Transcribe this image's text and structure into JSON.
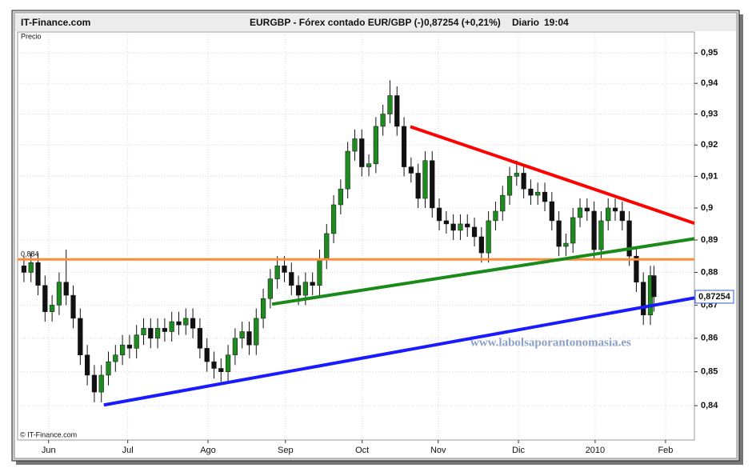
{
  "chart_data": {
    "type": "candlestick",
    "brand": "IT-Finance.com",
    "title": "EURGBP - Fórex contado EUR/GBP (-)",
    "quote": "0,87254 (+0,21%)",
    "period": "Diario",
    "time": "19:04",
    "y_label": "Precio",
    "copyright": "© IT-Finance.com",
    "watermark": "www.labolsaporantonomasia.es",
    "log_scale": true,
    "grid": true,
    "up_color": "#1f8a1f",
    "down_color": "#111111",
    "xlim": [
      -1.8,
      190.5
    ],
    "ylim": [
      0.83,
      0.957
    ],
    "xticks": [
      {
        "value": 7,
        "label": "Jun"
      },
      {
        "value": 29.5,
        "label": "Jul"
      },
      {
        "value": 52.3,
        "label": "Ago"
      },
      {
        "value": 74.3,
        "label": "Sep"
      },
      {
        "value": 96.1,
        "label": "Oct"
      },
      {
        "value": 117.7,
        "label": "Nov"
      },
      {
        "value": 140.5,
        "label": "Dic"
      },
      {
        "value": 162.3,
        "label": "2010"
      },
      {
        "value": 182.3,
        "label": "Feb"
      }
    ],
    "yticks": [
      {
        "value": 0.84,
        "label": "0,84"
      },
      {
        "value": 0.85,
        "label": "0,85"
      },
      {
        "value": 0.86,
        "label": "0,86"
      },
      {
        "value": 0.87,
        "label": "0,87"
      },
      {
        "value": 0.88,
        "label": "0,88"
      },
      {
        "value": 0.89,
        "label": "0,89"
      },
      {
        "value": 0.9,
        "label": "0,9"
      },
      {
        "value": 0.91,
        "label": "0,91"
      },
      {
        "value": 0.92,
        "label": "0,92"
      },
      {
        "value": 0.93,
        "label": "0,93"
      },
      {
        "value": 0.94,
        "label": "0,94"
      },
      {
        "value": 0.95,
        "label": "0,95"
      }
    ],
    "x": [
      0,
      2,
      4,
      6,
      8,
      10,
      12,
      14,
      16,
      18,
      20,
      22,
      24,
      26,
      28,
      30,
      32,
      34,
      36,
      38,
      40,
      42,
      44,
      46,
      48,
      50,
      52,
      54,
      56,
      58,
      60,
      62,
      64,
      66,
      68,
      70,
      72,
      74,
      76,
      78,
      80,
      82,
      84,
      86,
      88,
      90,
      92,
      94,
      96,
      98,
      100,
      102,
      104,
      106,
      108,
      110,
      112,
      114,
      116,
      118,
      120,
      122,
      124,
      126,
      128,
      130,
      132,
      134,
      136,
      138,
      140,
      142,
      144,
      146,
      148,
      150,
      152,
      154,
      156,
      158,
      160,
      162,
      164,
      166,
      168,
      170,
      172,
      174,
      176,
      178,
      179
    ],
    "open": [
      0.882,
      0.88,
      0.883,
      0.876,
      0.868,
      0.87,
      0.877,
      0.873,
      0.866,
      0.855,
      0.849,
      0.844,
      0.849,
      0.853,
      0.855,
      0.858,
      0.857,
      0.861,
      0.863,
      0.86,
      0.863,
      0.862,
      0.865,
      0.864,
      0.866,
      0.863,
      0.857,
      0.853,
      0.851,
      0.85,
      0.855,
      0.86,
      0.862,
      0.858,
      0.866,
      0.872,
      0.878,
      0.882,
      0.88,
      0.876,
      0.873,
      0.877,
      0.876,
      0.884,
      0.892,
      0.901,
      0.906,
      0.918,
      0.922,
      0.913,
      0.914,
      0.926,
      0.93,
      0.936,
      0.926,
      0.913,
      0.911,
      0.903,
      0.915,
      0.9,
      0.896,
      0.895,
      0.893,
      0.895,
      0.894,
      0.891,
      0.886,
      0.896,
      0.899,
      0.904,
      0.91,
      0.911,
      0.906,
      0.904,
      0.905,
      0.902,
      0.896,
      0.888,
      0.889,
      0.897,
      0.9,
      0.899,
      0.887,
      0.896,
      0.9,
      0.899,
      0.896,
      0.885,
      0.877,
      0.867,
      0.879
    ],
    "high": [
      0.885,
      0.886,
      0.886,
      0.879,
      0.873,
      0.88,
      0.887,
      0.876,
      0.869,
      0.858,
      0.852,
      0.852,
      0.856,
      0.858,
      0.861,
      0.861,
      0.864,
      0.866,
      0.866,
      0.866,
      0.866,
      0.868,
      0.868,
      0.869,
      0.869,
      0.866,
      0.86,
      0.856,
      0.854,
      0.858,
      0.863,
      0.865,
      0.865,
      0.869,
      0.875,
      0.881,
      0.885,
      0.885,
      0.883,
      0.879,
      0.88,
      0.88,
      0.887,
      0.895,
      0.904,
      0.909,
      0.921,
      0.925,
      0.925,
      0.917,
      0.929,
      0.933,
      0.941,
      0.939,
      0.929,
      0.916,
      0.914,
      0.918,
      0.918,
      0.903,
      0.899,
      0.898,
      0.898,
      0.898,
      0.897,
      0.894,
      0.899,
      0.902,
      0.907,
      0.913,
      0.915,
      0.914,
      0.909,
      0.908,
      0.908,
      0.905,
      0.899,
      0.892,
      0.9,
      0.903,
      0.903,
      0.902,
      0.899,
      0.903,
      0.903,
      0.902,
      0.899,
      0.888,
      0.88,
      0.882,
      0.882
    ],
    "low": [
      0.877,
      0.877,
      0.873,
      0.865,
      0.865,
      0.867,
      0.87,
      0.863,
      0.852,
      0.846,
      0.841,
      0.841,
      0.846,
      0.85,
      0.852,
      0.854,
      0.854,
      0.858,
      0.857,
      0.857,
      0.859,
      0.859,
      0.861,
      0.861,
      0.86,
      0.854,
      0.85,
      0.848,
      0.847,
      0.847,
      0.852,
      0.857,
      0.855,
      0.855,
      0.863,
      0.869,
      0.875,
      0.877,
      0.873,
      0.87,
      0.87,
      0.873,
      0.873,
      0.881,
      0.889,
      0.898,
      0.903,
      0.915,
      0.91,
      0.91,
      0.911,
      0.923,
      0.927,
      0.923,
      0.91,
      0.908,
      0.9,
      0.9,
      0.897,
      0.893,
      0.892,
      0.89,
      0.89,
      0.891,
      0.888,
      0.883,
      0.883,
      0.893,
      0.896,
      0.901,
      0.907,
      0.903,
      0.901,
      0.901,
      0.899,
      0.893,
      0.885,
      0.885,
      0.886,
      0.894,
      0.896,
      0.884,
      0.884,
      0.893,
      0.896,
      0.893,
      0.882,
      0.874,
      0.864,
      0.864,
      0.868
    ],
    "close": [
      0.88,
      0.883,
      0.876,
      0.868,
      0.87,
      0.877,
      0.873,
      0.866,
      0.855,
      0.849,
      0.844,
      0.849,
      0.853,
      0.855,
      0.858,
      0.857,
      0.861,
      0.863,
      0.86,
      0.863,
      0.862,
      0.865,
      0.864,
      0.866,
      0.863,
      0.857,
      0.853,
      0.851,
      0.85,
      0.855,
      0.86,
      0.862,
      0.858,
      0.866,
      0.872,
      0.878,
      0.882,
      0.88,
      0.876,
      0.873,
      0.877,
      0.876,
      0.884,
      0.892,
      0.901,
      0.906,
      0.918,
      0.922,
      0.913,
      0.914,
      0.926,
      0.93,
      0.936,
      0.926,
      0.913,
      0.911,
      0.903,
      0.915,
      0.9,
      0.896,
      0.895,
      0.893,
      0.895,
      0.894,
      0.891,
      0.886,
      0.896,
      0.899,
      0.904,
      0.91,
      0.911,
      0.906,
      0.904,
      0.905,
      0.902,
      0.896,
      0.888,
      0.889,
      0.897,
      0.9,
      0.899,
      0.887,
      0.896,
      0.9,
      0.899,
      0.896,
      0.885,
      0.877,
      0.867,
      0.879,
      0.87254
    ],
    "hline": {
      "value": 0.884,
      "label": "0,884",
      "color": "#ff8c3c"
    },
    "trendlines": [
      {
        "color": "#ff0000",
        "x": [
          109.8,
          190.5
        ],
        "y": [
          0.9259,
          0.8952
        ]
      },
      {
        "color": "#1a8a1a",
        "x": [
          70.5,
          190.5
        ],
        "y": [
          0.8703,
          0.8904
        ]
      },
      {
        "color": "#1a1aff",
        "x": [
          22.7,
          190.5
        ],
        "y": [
          0.8402,
          0.8722
        ]
      }
    ],
    "last_price": {
      "value": 0.87254,
      "label": "0,87254"
    }
  }
}
